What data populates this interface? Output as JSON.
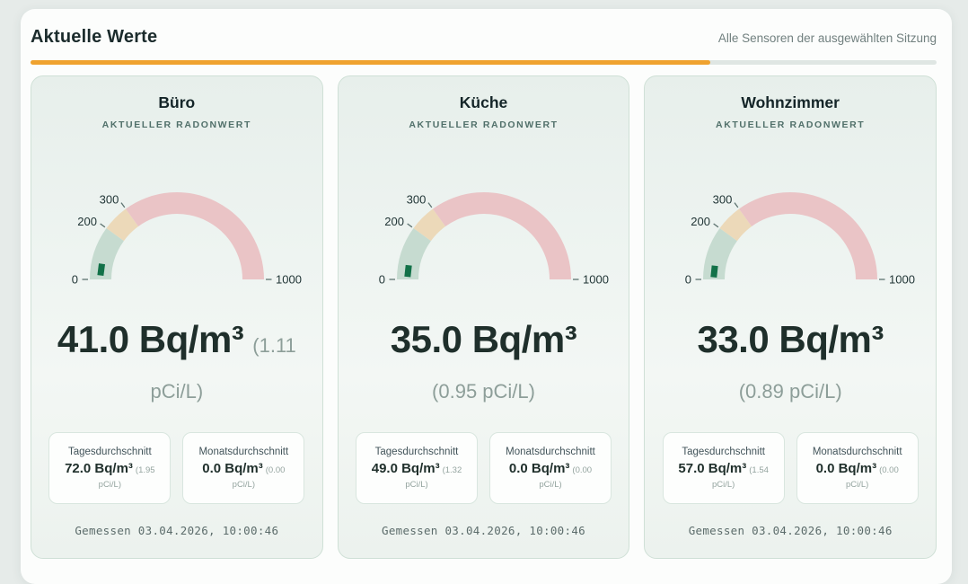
{
  "header": {
    "title": "Aktuelle Werte",
    "scope_label": "Alle Sensoren der ausgewählten Sitzung"
  },
  "accent": {
    "orange": "#efa22f",
    "track_gray": "#dfe6e3",
    "orange_fraction": 0.75
  },
  "cards": [
    {
      "title": "Büro",
      "kicker": "AKTUELLER RADONWERT",
      "value_line1": "41.0 Bq/m³",
      "value_line1_paren": "(1.11",
      "value_line2": "pCi/L)",
      "stats": [
        {
          "label": "Tagesdurchschnitt",
          "value": "72.0 Bq/m³",
          "paren1": "(1.95",
          "paren2": "pCi/L)"
        },
        {
          "label": "Monatsdurchschnitt",
          "value": "0.0 Bq/m³",
          "paren1": "(0.00",
          "paren2": "pCi/L)"
        }
      ],
      "measured": "Gemessen 03.04.2026, 10:00:46"
    },
    {
      "title": "Küche",
      "kicker": "AKTUELLER RADONWERT",
      "value_line1": "35.0 Bq/m³",
      "value_line1_paren": "",
      "value_line2": "(0.95 pCi/L)",
      "stats": [
        {
          "label": "Tagesdurchschnitt",
          "value": "49.0 Bq/m³",
          "paren1": "(1.32",
          "paren2": "pCi/L)"
        },
        {
          "label": "Monatsdurchschnitt",
          "value": "0.0 Bq/m³",
          "paren1": "(0.00",
          "paren2": "pCi/L)"
        }
      ],
      "measured": "Gemessen 03.04.2026, 10:00:46"
    },
    {
      "title": "Wohnzimmer",
      "kicker": "AKTUELLER RADONWERT",
      "value_line1": "33.0 Bq/m³",
      "value_line1_paren": "",
      "value_line2": "(0.89 pCi/L)",
      "stats": [
        {
          "label": "Tagesdurchschnitt",
          "value": "57.0 Bq/m³",
          "paren1": "(1.54",
          "paren2": "pCi/L)"
        },
        {
          "label": "Monatsdurchschnitt",
          "value": "0.0 Bq/m³",
          "paren1": "(0.00",
          "paren2": "pCi/L)"
        }
      ],
      "measured": "Gemessen 03.04.2026, 10:00:46"
    }
  ],
  "chart_data": {
    "type": "gauge",
    "min": 0,
    "max": 1000,
    "unit": "Bq/m³",
    "ticks": [
      0,
      200,
      300,
      1000
    ],
    "bands": [
      {
        "from": 0,
        "to": 200,
        "color": "#c6dbd0"
      },
      {
        "from": 200,
        "to": 300,
        "color": "#ecd9b9"
      },
      {
        "from": 300,
        "to": 1000,
        "color": "#eac4c6"
      }
    ],
    "tick_color": "#5d7370",
    "label_color": "#223637",
    "marker_color": "#127148",
    "gauges": [
      {
        "room": "Büro",
        "value": 41.0,
        "value_pci_l": 1.11
      },
      {
        "room": "Küche",
        "value": 35.0,
        "value_pci_l": 0.95
      },
      {
        "room": "Wohnzimmer",
        "value": 33.0,
        "value_pci_l": 0.89
      }
    ]
  }
}
